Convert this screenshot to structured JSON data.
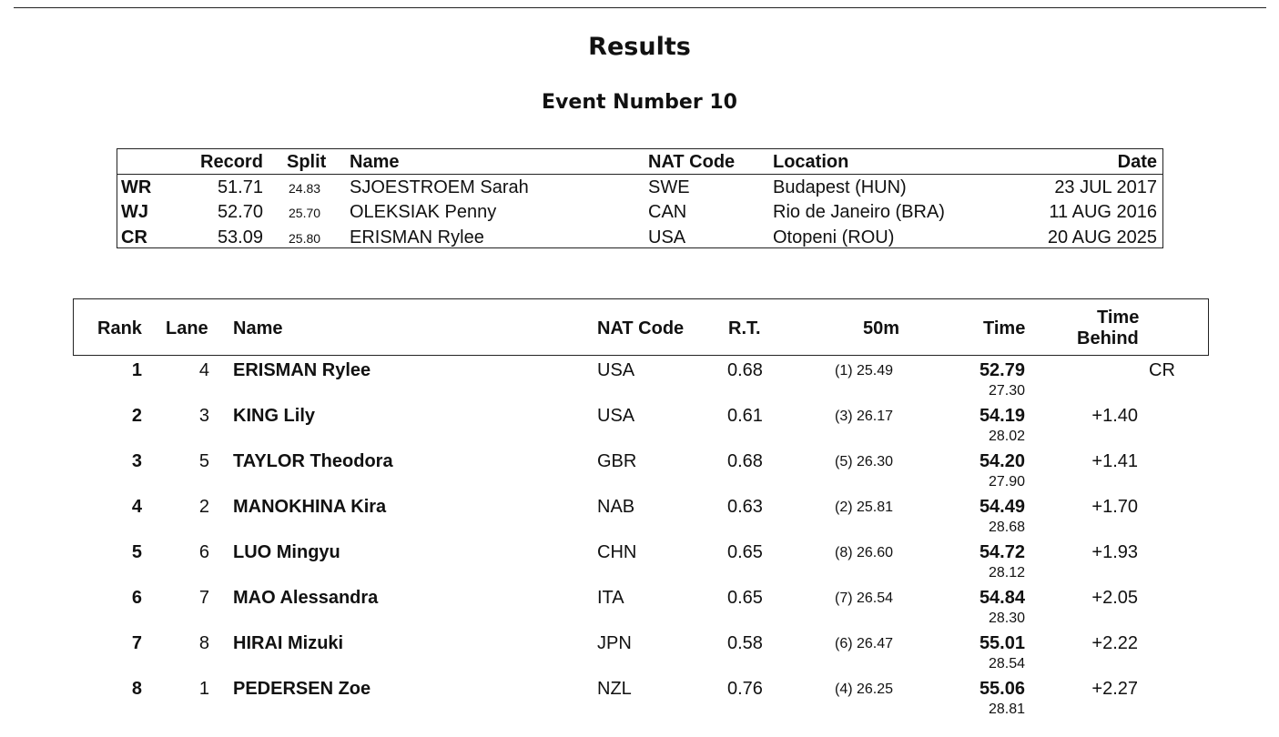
{
  "page": {
    "title": "Results",
    "event": "Event Number 10"
  },
  "records": {
    "headers": {
      "record": "Record",
      "split": "Split",
      "name": "Name",
      "nat": "NAT Code",
      "location": "Location",
      "date": "Date"
    },
    "rows": [
      {
        "code": "WR",
        "record": "51.71",
        "split": "24.83",
        "name": "SJOESTROEM Sarah",
        "nat": "SWE",
        "location": "Budapest (HUN)",
        "date": "23 JUL 2017"
      },
      {
        "code": "WJ",
        "record": "52.70",
        "split": "25.70",
        "name": "OLEKSIAK Penny",
        "nat": "CAN",
        "location": "Rio de Janeiro (BRA)",
        "date": "11 AUG 2016"
      },
      {
        "code": "CR",
        "record": "53.09",
        "split": "25.80",
        "name": "ERISMAN Rylee",
        "nat": "USA",
        "location": "Otopeni (ROU)",
        "date": "20 AUG 2025"
      }
    ]
  },
  "results": {
    "headers": {
      "rank": "Rank",
      "lane": "Lane",
      "name": "Name",
      "nat": "NAT Code",
      "rt": "R.T.",
      "split": "50m",
      "time": "Time",
      "behind_1": "Time",
      "behind_2": "Behind"
    },
    "rows": [
      {
        "rank": "1",
        "lane": "4",
        "name": "ERISMAN Rylee",
        "nat": "USA",
        "rt": "0.68",
        "split": "(1) 25.49",
        "time": "52.79",
        "sub": "27.30",
        "behind": "",
        "rec": "CR"
      },
      {
        "rank": "2",
        "lane": "3",
        "name": "KING Lily",
        "nat": "USA",
        "rt": "0.61",
        "split": "(3) 26.17",
        "time": "54.19",
        "sub": "28.02",
        "behind": "+1.40",
        "rec": ""
      },
      {
        "rank": "3",
        "lane": "5",
        "name": "TAYLOR Theodora",
        "nat": "GBR",
        "rt": "0.68",
        "split": "(5) 26.30",
        "time": "54.20",
        "sub": "27.90",
        "behind": "+1.41",
        "rec": ""
      },
      {
        "rank": "4",
        "lane": "2",
        "name": "MANOKHINA Kira",
        "nat": "NAB",
        "rt": "0.63",
        "split": "(2) 25.81",
        "time": "54.49",
        "sub": "28.68",
        "behind": "+1.70",
        "rec": ""
      },
      {
        "rank": "5",
        "lane": "6",
        "name": "LUO Mingyu",
        "nat": "CHN",
        "rt": "0.65",
        "split": "(8) 26.60",
        "time": "54.72",
        "sub": "28.12",
        "behind": "+1.93",
        "rec": ""
      },
      {
        "rank": "6",
        "lane": "7",
        "name": "MAO Alessandra",
        "nat": "ITA",
        "rt": "0.65",
        "split": "(7) 26.54",
        "time": "54.84",
        "sub": "28.30",
        "behind": "+2.05",
        "rec": ""
      },
      {
        "rank": "7",
        "lane": "8",
        "name": "HIRAI Mizuki",
        "nat": "JPN",
        "rt": "0.58",
        "split": "(6) 26.47",
        "time": "55.01",
        "sub": "28.54",
        "behind": "+2.22",
        "rec": ""
      },
      {
        "rank": "8",
        "lane": "1",
        "name": "PEDERSEN Zoe",
        "nat": "NZL",
        "rt": "0.76",
        "split": "(4) 26.25",
        "time": "55.06",
        "sub": "28.81",
        "behind": "+2.27",
        "rec": ""
      }
    ]
  }
}
